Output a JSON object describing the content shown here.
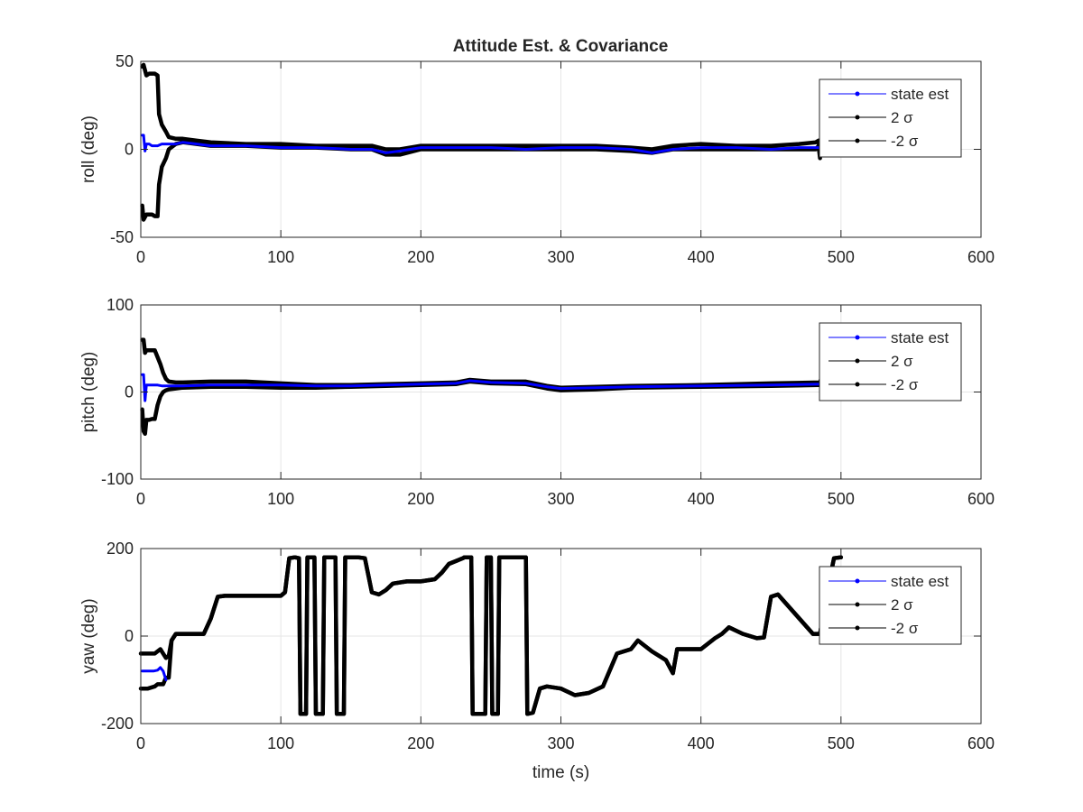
{
  "figure": {
    "title": "Attitude Est. & Covariance"
  },
  "colors": {
    "state_est": "#0000ff",
    "sigma": "#000000",
    "grid": "#e6e6e6",
    "axis": "#262626"
  },
  "chart_data": [
    {
      "type": "line",
      "ylabel": "roll (deg)",
      "xlabel": "",
      "xlim": [
        0,
        600
      ],
      "ylim": [
        -50,
        50
      ],
      "xticks": [
        0,
        100,
        200,
        300,
        400,
        500,
        600
      ],
      "yticks": [
        -50,
        0,
        50
      ],
      "grid": true,
      "legend_position": "top-right",
      "series": [
        {
          "name": "state est",
          "color": "#0000ff",
          "x": [
            1,
            2,
            3,
            4,
            6,
            8,
            10,
            12,
            15,
            20,
            25,
            30,
            40,
            50,
            75,
            100,
            125,
            150,
            165,
            175,
            185,
            200,
            225,
            250,
            275,
            300,
            325,
            350,
            365,
            380,
            400,
            425,
            450,
            470,
            485
          ],
          "y": [
            8,
            8,
            -1,
            3,
            3,
            2,
            2,
            2,
            3,
            3,
            3,
            4,
            3,
            2,
            2,
            1,
            1,
            0,
            0,
            -2,
            -1,
            1,
            1,
            1,
            0,
            1,
            1,
            0,
            -2,
            0,
            1,
            1,
            0,
            1,
            1
          ]
        },
        {
          "name": "2 σ",
          "color": "#000000",
          "x": [
            1,
            2,
            4,
            6,
            8,
            10,
            12,
            13,
            15,
            18,
            20,
            25,
            30,
            40,
            50,
            75,
            100,
            125,
            150,
            165,
            175,
            185,
            200,
            225,
            250,
            275,
            300,
            325,
            350,
            365,
            380,
            400,
            425,
            450,
            470,
            482,
            484,
            485
          ],
          "y": [
            47,
            48,
            42,
            43,
            43,
            43,
            42,
            20,
            14,
            10,
            7,
            6,
            6,
            5,
            4,
            3,
            3,
            2,
            2,
            2,
            0,
            0,
            2,
            2,
            2,
            2,
            2,
            2,
            1,
            0,
            2,
            3,
            2,
            2,
            3,
            4,
            5,
            -4
          ]
        },
        {
          "name": "-2 σ",
          "color": "#000000",
          "x": [
            1,
            2,
            4,
            6,
            8,
            10,
            12,
            13,
            15,
            18,
            20,
            25,
            30,
            40,
            50,
            75,
            100,
            125,
            150,
            165,
            175,
            185,
            200,
            225,
            250,
            275,
            300,
            325,
            350,
            365,
            380,
            400,
            425,
            450,
            470,
            482,
            484,
            485
          ],
          "y": [
            -32,
            -40,
            -37,
            -37,
            -37,
            -38,
            -38,
            -20,
            -10,
            -5,
            0,
            3,
            4,
            3,
            2,
            2,
            1,
            1,
            0,
            0,
            -3,
            -3,
            0,
            0,
            0,
            0,
            0,
            0,
            -1,
            -2,
            0,
            0,
            0,
            0,
            0,
            0,
            2,
            -5
          ]
        }
      ]
    },
    {
      "type": "line",
      "ylabel": "pitch (deg)",
      "xlabel": "",
      "xlim": [
        0,
        600
      ],
      "ylim": [
        -100,
        100
      ],
      "xticks": [
        0,
        100,
        200,
        300,
        400,
        500,
        600
      ],
      "yticks": [
        -100,
        0,
        100
      ],
      "grid": true,
      "legend_position": "top-right",
      "series": [
        {
          "name": "state est",
          "color": "#0000ff",
          "x": [
            1,
            2,
            3,
            4,
            6,
            8,
            10,
            12,
            15,
            20,
            30,
            50,
            75,
            100,
            125,
            150,
            175,
            200,
            225,
            235,
            250,
            275,
            290,
            300,
            325,
            350,
            400,
            450,
            485
          ],
          "y": [
            20,
            20,
            -10,
            8,
            8,
            8,
            8,
            8,
            7,
            7,
            7,
            8,
            8,
            8,
            7,
            7,
            8,
            9,
            10,
            13,
            11,
            10,
            6,
            4,
            5,
            6,
            7,
            8,
            9
          ]
        },
        {
          "name": "2 σ",
          "color": "#000000",
          "x": [
            1,
            2,
            3,
            4,
            6,
            8,
            10,
            12,
            14,
            16,
            18,
            20,
            25,
            30,
            50,
            75,
            100,
            125,
            150,
            175,
            200,
            225,
            235,
            250,
            275,
            290,
            300,
            325,
            350,
            400,
            450,
            485,
            486
          ],
          "y": [
            60,
            60,
            45,
            48,
            48,
            48,
            48,
            40,
            32,
            22,
            15,
            12,
            11,
            11,
            12,
            12,
            10,
            8,
            8,
            9,
            10,
            11,
            14,
            12,
            12,
            7,
            5,
            6,
            7,
            8,
            10,
            11,
            16
          ]
        },
        {
          "name": "-2 σ",
          "color": "#000000",
          "x": [
            1,
            2,
            3,
            4,
            6,
            8,
            10,
            12,
            14,
            16,
            18,
            20,
            25,
            30,
            50,
            75,
            100,
            125,
            150,
            175,
            200,
            225,
            235,
            250,
            275,
            290,
            300,
            325,
            350,
            400,
            450,
            485,
            486
          ],
          "y": [
            -20,
            -45,
            -48,
            -32,
            -32,
            -31,
            -31,
            -15,
            -5,
            0,
            2,
            3,
            4,
            5,
            6,
            6,
            5,
            5,
            6,
            7,
            8,
            9,
            12,
            10,
            9,
            4,
            2,
            3,
            5,
            6,
            7,
            8,
            9
          ]
        }
      ]
    },
    {
      "type": "line",
      "ylabel": "yaw (deg)",
      "xlabel": "time (s)",
      "xlim": [
        0,
        600
      ],
      "ylim": [
        -200,
        200
      ],
      "xticks": [
        0,
        100,
        200,
        300,
        400,
        500,
        600
      ],
      "yticks": [
        -200,
        0,
        200
      ],
      "grid": true,
      "legend_position": "top-right",
      "series": [
        {
          "name": "state est",
          "color": "#0000ff",
          "x": [
            1,
            3,
            6,
            9,
            12,
            14,
            16,
            18
          ],
          "y": [
            -80,
            -80,
            -80,
            -80,
            -78,
            -72,
            -80,
            -100
          ]
        },
        {
          "name": "2 σ",
          "color": "#000000",
          "x": [
            0,
            5,
            10,
            14,
            16,
            18,
            20,
            22,
            25,
            35,
            45,
            50,
            55,
            60,
            80,
            100,
            103,
            106,
            110,
            113,
            114,
            118,
            119,
            124,
            125,
            130,
            131,
            139,
            140,
            145,
            146,
            155,
            160,
            165,
            170,
            175,
            180,
            190,
            200,
            210,
            215,
            220,
            230,
            231,
            236,
            237,
            246,
            247,
            250,
            251,
            255,
            256,
            275,
            276,
            280,
            285,
            290,
            300,
            310,
            320,
            330,
            340,
            350,
            355,
            365,
            375,
            380,
            383,
            390,
            400,
            410,
            415,
            420,
            430,
            440,
            445,
            450,
            455,
            480,
            485,
            490,
            495,
            500
          ],
          "y": [
            -40,
            -40,
            -40,
            -30,
            -40,
            -50,
            -45,
            -10,
            5,
            5,
            5,
            40,
            90,
            92,
            92,
            92,
            100,
            178,
            180,
            178,
            -178,
            -178,
            180,
            180,
            -178,
            -178,
            180,
            180,
            -178,
            -178,
            180,
            180,
            178,
            100,
            95,
            105,
            120,
            125,
            125,
            130,
            145,
            165,
            178,
            180,
            180,
            -178,
            -178,
            180,
            180,
            -178,
            -178,
            180,
            180,
            -178,
            -175,
            -120,
            -115,
            -120,
            -135,
            -130,
            -115,
            -40,
            -30,
            -10,
            -35,
            -55,
            -85,
            -30,
            -30,
            -30,
            -5,
            5,
            20,
            5,
            -5,
            -3,
            90,
            95,
            5,
            5,
            100,
            178,
            180
          ]
        },
        {
          "name": "-2 σ",
          "color": "#000000",
          "x": [
            0,
            5,
            10,
            12,
            14,
            16,
            18,
            20,
            22,
            25,
            35,
            45,
            50,
            55,
            60,
            80,
            100,
            103,
            106,
            110,
            113,
            114,
            118,
            119,
            124,
            125,
            130,
            131,
            139,
            140,
            145,
            146,
            155,
            160,
            165,
            170,
            175,
            180,
            190,
            200,
            210,
            215,
            220,
            230,
            231,
            236,
            237,
            246,
            247,
            250,
            251,
            255,
            256,
            275,
            276,
            280,
            285,
            290,
            300,
            310,
            320,
            330,
            340,
            350,
            355,
            365,
            375,
            380,
            383,
            390,
            400,
            410,
            415,
            420,
            430,
            440,
            445,
            450,
            455,
            480,
            485,
            490,
            495,
            500
          ],
          "y": [
            -120,
            -120,
            -115,
            -110,
            -110,
            -110,
            -95,
            -95,
            -10,
            5,
            5,
            5,
            40,
            90,
            92,
            92,
            92,
            100,
            178,
            180,
            178,
            -178,
            -178,
            180,
            180,
            -178,
            -178,
            180,
            180,
            -178,
            -178,
            180,
            180,
            178,
            100,
            95,
            105,
            120,
            125,
            125,
            130,
            145,
            165,
            178,
            180,
            180,
            -178,
            -178,
            180,
            180,
            -178,
            -178,
            180,
            180,
            -178,
            -175,
            -120,
            -115,
            -120,
            -135,
            -130,
            -115,
            -40,
            -30,
            -10,
            -35,
            -55,
            -85,
            -30,
            -30,
            -30,
            -5,
            5,
            20,
            5,
            -5,
            -3,
            90,
            95,
            5,
            5,
            100,
            178,
            180
          ]
        }
      ]
    }
  ]
}
